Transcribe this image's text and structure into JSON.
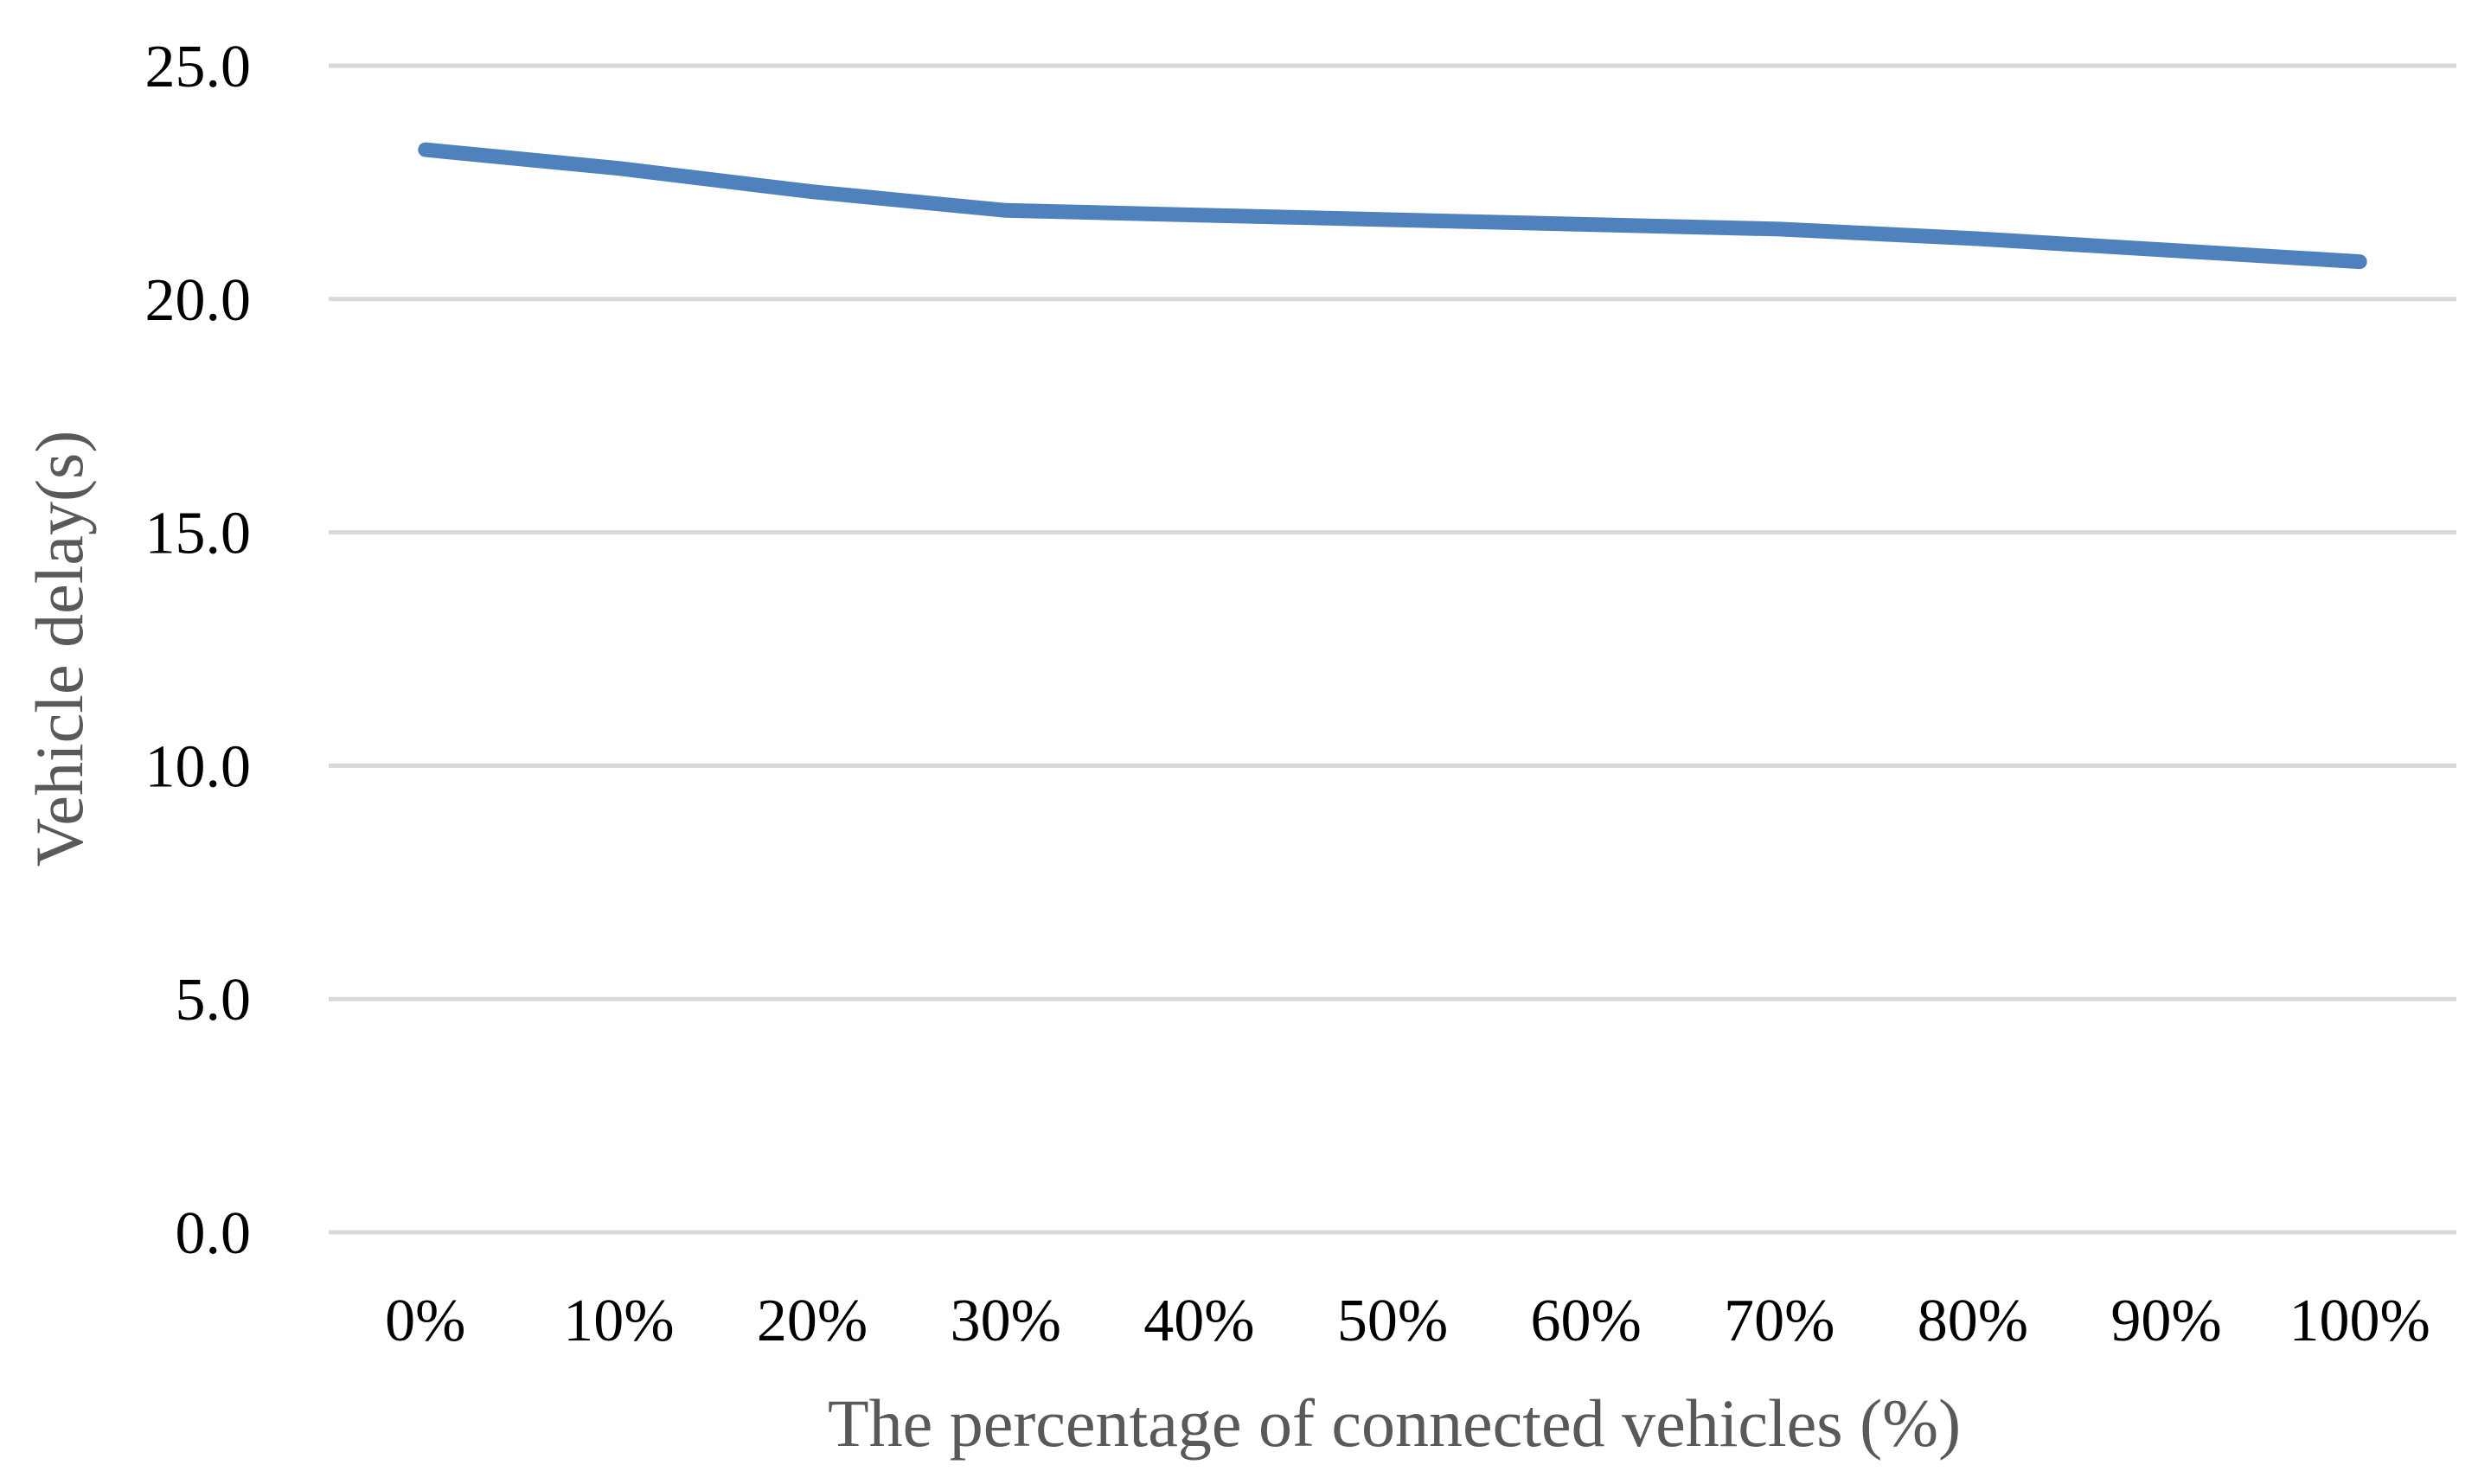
{
  "chart_data": {
    "type": "line",
    "xlabel": "The percentage of connected vehicles (%)",
    "ylabel": "Vehicle delay(s)",
    "categories": [
      "0%",
      "10%",
      "20%",
      "30%",
      "40%",
      "50%",
      "60%",
      "70%",
      "80%",
      "90%",
      "100%"
    ],
    "series": [
      {
        "values": [
          23.2,
          22.8,
          22.3,
          21.9,
          21.8,
          21.7,
          21.6,
          21.5,
          21.3,
          21.05,
          20.8
        ],
        "color": "#4F81BD"
      }
    ],
    "ylim": [
      0,
      25
    ],
    "yticks": [
      "0.0",
      "5.0",
      "10.0",
      "15.0",
      "20.0",
      "25.0"
    ],
    "grid": true,
    "gridColor": "#D9D9D9",
    "legend": "none"
  }
}
